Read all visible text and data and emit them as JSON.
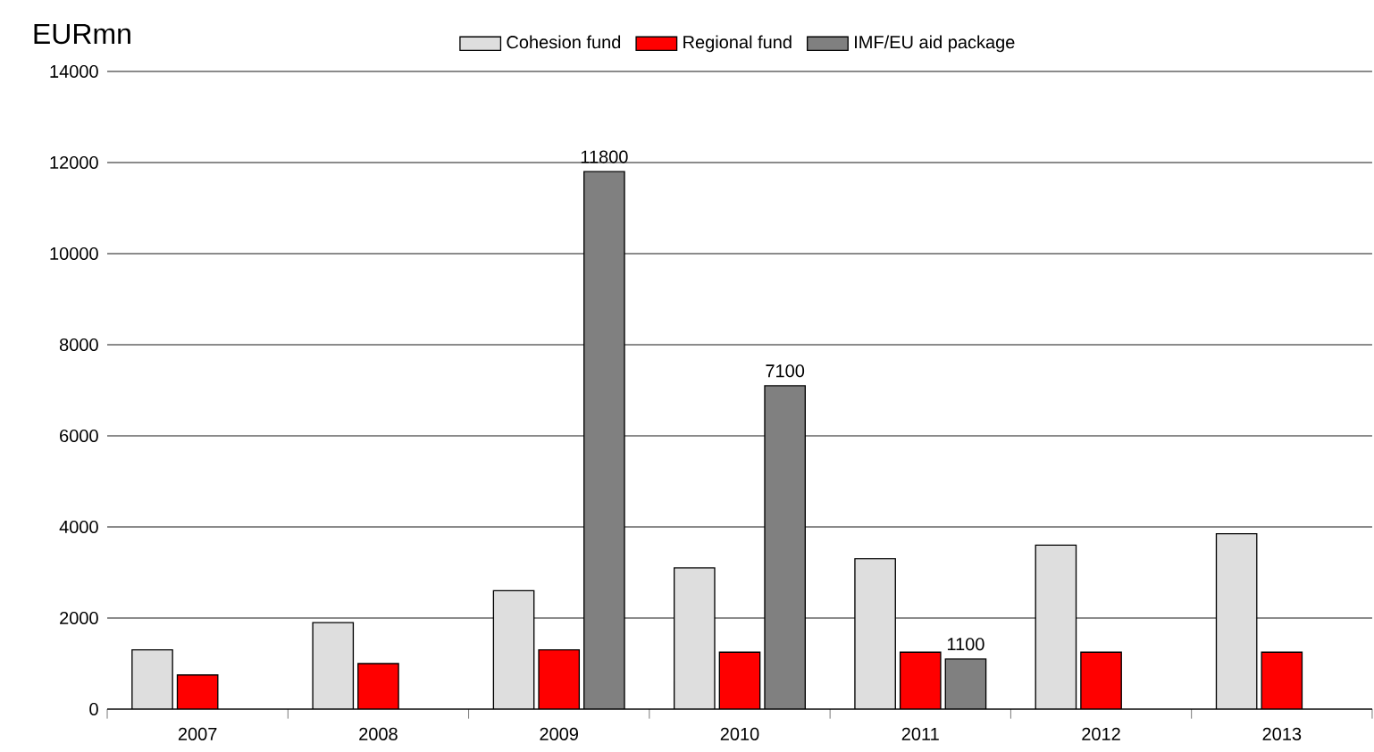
{
  "chart_data": {
    "type": "bar",
    "ylabel": "EURmn",
    "categories": [
      "2007",
      "2008",
      "2009",
      "2010",
      "2011",
      "2012",
      "2013"
    ],
    "series": [
      {
        "name": "Cohesion fund",
        "color": "#dedede",
        "values": [
          1300,
          1900,
          2600,
          3100,
          3300,
          3600,
          3850
        ]
      },
      {
        "name": "Regional fund",
        "color": "#ff0000",
        "values": [
          750,
          1000,
          1300,
          1250,
          1250,
          1250,
          1250
        ]
      },
      {
        "name": "IMF/EU aid package",
        "color": "#808080",
        "values": [
          null,
          null,
          11800,
          7100,
          1100,
          null,
          null
        ],
        "value_labels": [
          null,
          null,
          "11800",
          "7100",
          "1100",
          null,
          null
        ]
      }
    ],
    "ylim": [
      0,
      14000
    ],
    "yticks": [
      0,
      2000,
      4000,
      6000,
      8000,
      10000,
      12000,
      14000
    ],
    "grid": "y",
    "legend": "top"
  }
}
